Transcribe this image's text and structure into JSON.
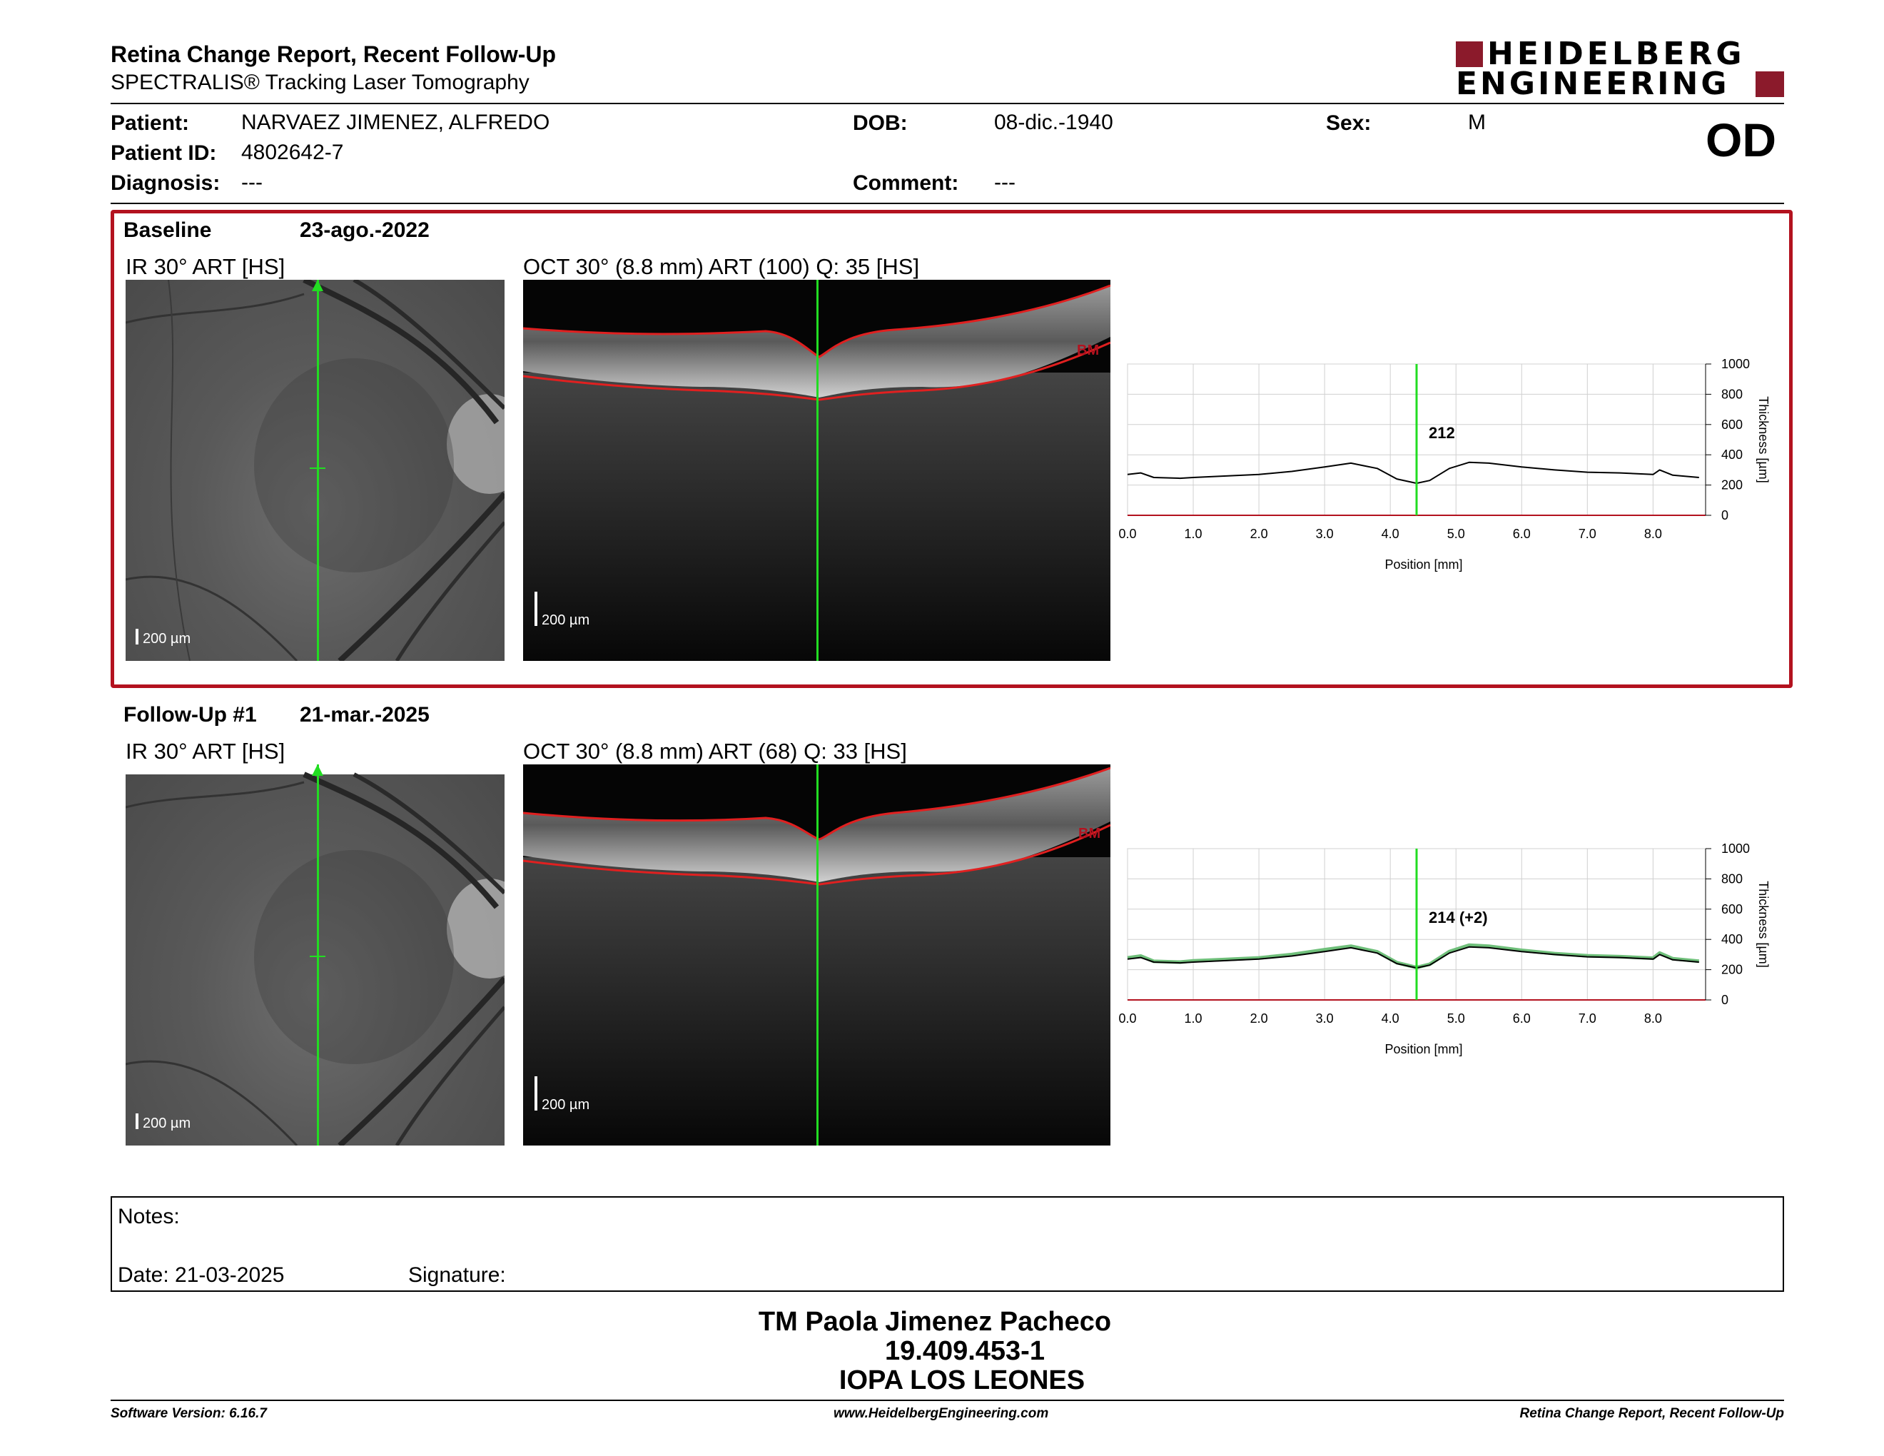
{
  "header": {
    "title": "Retina Change Report, Recent Follow-Up",
    "subtitle": "SPECTRALIS® Tracking Laser Tomography",
    "brand_line1": "HEIDELBERG",
    "brand_line2": "ENGINEERING",
    "eye": "OD"
  },
  "patient": {
    "patient_label": "Patient:",
    "patient_value": "NARVAEZ JIMENEZ, ALFREDO",
    "id_label": "Patient ID:",
    "id_value": "4802642-7",
    "diagnosis_label": "Diagnosis:",
    "diagnosis_value": "---",
    "dob_label": "DOB:",
    "dob_value": "08-dic.-1940",
    "comment_label": "Comment:",
    "comment_value": "---",
    "sex_label": "Sex:",
    "sex_value": "M"
  },
  "baseline": {
    "label": "Baseline",
    "date": "23-ago.-2022",
    "ir_title": "IR 30° ART [HS]",
    "oct_title": "OCT 30° (8.8 mm) ART (100) Q: 35 [HS]",
    "scale_ir": "200 µm",
    "scale_oct": "200 µm",
    "bm_label": "BM",
    "marker_value": "212"
  },
  "followup": {
    "label": "Follow-Up #1",
    "date": "21-mar.-2025",
    "ir_title": "IR 30° ART [HS]",
    "oct_title": "OCT 30° (8.8 mm) ART (68) Q: 33 [HS]",
    "scale_ir": "200 µm",
    "scale_oct": "200 µm",
    "bm_label": "BM",
    "marker_value": "214 (+2)"
  },
  "colors": {
    "frame_red": "#b3121f",
    "brand_red": "#8b1a2b",
    "marker_green": "#22dd22",
    "segmentation_red": "#e02020",
    "followup_green": "#6fbf7a"
  },
  "chart_data": [
    {
      "type": "line",
      "name": "baseline-thickness",
      "xlabel": "Position [mm]",
      "ylabel": "Thickness [µm]",
      "xlim": [
        0,
        8.8
      ],
      "ylim": [
        0,
        1000
      ],
      "xticks": [
        "0.0",
        "1.0",
        "2.0",
        "3.0",
        "4.0",
        "5.0",
        "6.0",
        "7.0",
        "8.0"
      ],
      "yticks": [
        "0",
        "200",
        "400",
        "600",
        "800",
        "1000"
      ],
      "marker_x": 4.4,
      "series": [
        {
          "x": [
            0.0,
            0.2,
            0.4,
            0.8,
            1.0,
            1.5,
            2.0,
            2.5,
            3.0,
            3.4,
            3.8,
            4.1,
            4.4,
            4.6,
            4.9,
            5.2,
            5.5,
            6.0,
            6.5,
            7.0,
            7.5,
            8.0,
            8.1,
            8.3,
            8.7
          ],
          "y": [
            270,
            280,
            250,
            245,
            250,
            260,
            270,
            290,
            320,
            345,
            310,
            240,
            212,
            230,
            310,
            350,
            345,
            320,
            300,
            285,
            280,
            270,
            300,
            265,
            250
          ]
        }
      ]
    },
    {
      "type": "line",
      "name": "followup-thickness",
      "xlabel": "Position [mm]",
      "ylabel": "Thickness [µm]",
      "xlim": [
        0,
        8.8
      ],
      "ylim": [
        0,
        1000
      ],
      "xticks": [
        "0.0",
        "1.0",
        "2.0",
        "3.0",
        "4.0",
        "5.0",
        "6.0",
        "7.0",
        "8.0"
      ],
      "yticks": [
        "0",
        "200",
        "400",
        "600",
        "800",
        "1000"
      ],
      "marker_x": 4.4,
      "series": [
        {
          "x": [
            0.0,
            0.2,
            0.4,
            0.8,
            1.0,
            1.5,
            2.0,
            2.5,
            3.0,
            3.4,
            3.8,
            4.1,
            4.4,
            4.6,
            4.9,
            5.2,
            5.5,
            6.0,
            6.5,
            7.0,
            7.5,
            8.0,
            8.1,
            8.3,
            8.7
          ],
          "y": [
            270,
            280,
            250,
            245,
            250,
            260,
            270,
            290,
            320,
            345,
            310,
            240,
            212,
            230,
            310,
            350,
            345,
            320,
            300,
            285,
            280,
            270,
            300,
            265,
            250
          ]
        },
        {
          "x": [
            0.0,
            0.2,
            0.4,
            0.8,
            1.0,
            1.5,
            2.0,
            2.5,
            3.0,
            3.4,
            3.8,
            4.1,
            4.4,
            4.6,
            4.9,
            5.2,
            5.5,
            6.0,
            6.5,
            7.0,
            7.5,
            8.0,
            8.1,
            8.3,
            8.7
          ],
          "y": [
            278,
            290,
            255,
            250,
            258,
            268,
            278,
            300,
            332,
            355,
            318,
            246,
            214,
            236,
            320,
            362,
            355,
            328,
            306,
            292,
            286,
            276,
            310,
            272,
            256
          ]
        }
      ]
    }
  ],
  "notes": {
    "notes_label": "Notes:",
    "date_label": "Date: 21-03-2025",
    "signature_label": "Signature:"
  },
  "signer": {
    "name": "TM Paola Jimenez Pacheco",
    "rut": "19.409.453-1",
    "institution": "IOPA LOS LEONES"
  },
  "footer": {
    "software": "Software Version: 6.16.7",
    "website": "www.HeidelbergEngineering.com",
    "report": "Retina Change Report, Recent Follow-Up"
  }
}
